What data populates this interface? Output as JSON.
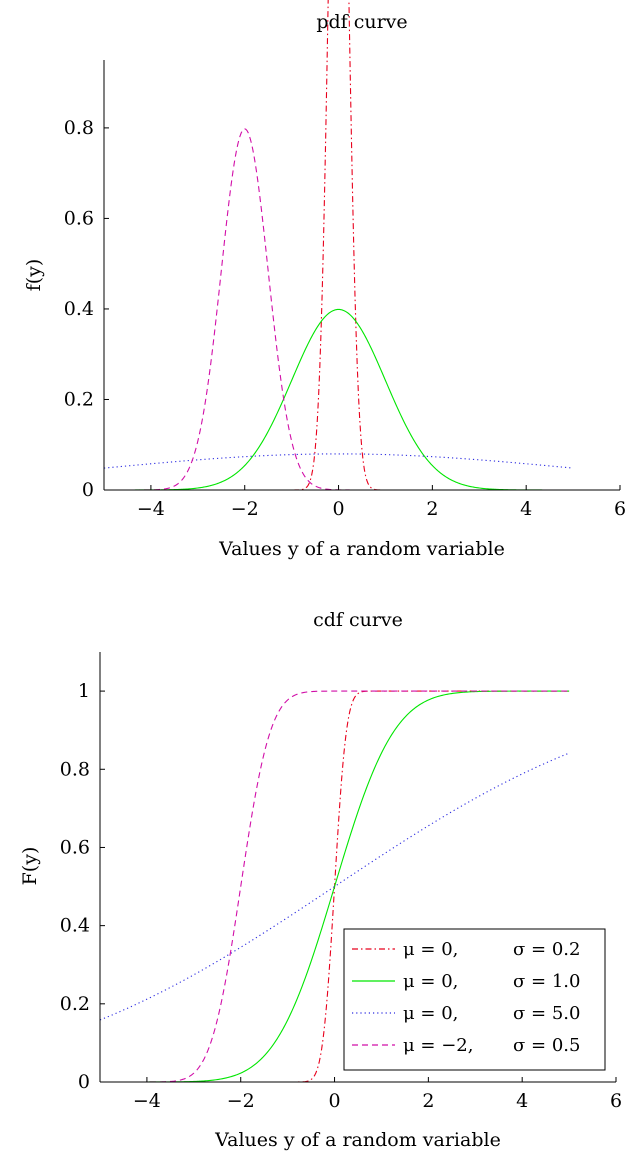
{
  "chart_data": [
    {
      "type": "line",
      "title": "pdf curve",
      "xlabel": "Values y of a random variable",
      "ylabel": "f(y)",
      "xlim": [
        -5,
        6
      ],
      "ylim": [
        0,
        0.95
      ],
      "xticks": [
        -4,
        -2,
        0,
        2,
        4,
        6
      ],
      "xtick_labels": [
        "−4",
        "−2",
        "0",
        "2",
        "4",
        "6"
      ],
      "yticks": [
        0,
        0.2,
        0.4,
        0.6,
        0.8
      ],
      "ytick_labels": [
        "0",
        "0.2",
        "0.4",
        "0.6",
        "0.8"
      ],
      "grid": false,
      "legend": "none",
      "series": [
        {
          "mu": 0,
          "sigma": 0.2,
          "color": "#e8001c",
          "dash": "dashdot"
        },
        {
          "mu": 0,
          "sigma": 1.0,
          "color": "#00e600",
          "dash": "solid"
        },
        {
          "mu": 0,
          "sigma": 5.0,
          "color": "#2a2ae0",
          "dash": "dotted"
        },
        {
          "mu": -2,
          "sigma": 0.5,
          "color": "#d10fa8",
          "dash": "dashed"
        }
      ]
    },
    {
      "type": "line",
      "title": "cdf curve",
      "xlabel": "Values y of a random variable",
      "ylabel": "F(y)",
      "xlim": [
        -5,
        6
      ],
      "ylim": [
        0,
        1.1
      ],
      "xticks": [
        -4,
        -2,
        0,
        2,
        4,
        6
      ],
      "xtick_labels": [
        "−4",
        "−2",
        "0",
        "2",
        "4",
        "6"
      ],
      "yticks": [
        0,
        0.2,
        0.4,
        0.6,
        0.8,
        1
      ],
      "ytick_labels": [
        "0",
        "0.2",
        "0.4",
        "0.6",
        "0.8",
        "1"
      ],
      "grid": false,
      "legend": "bottom-right",
      "legend_entries": [
        {
          "mu_label": "μ = 0,",
          "sigma_label": "σ = 0.2"
        },
        {
          "mu_label": "μ = 0,",
          "sigma_label": "σ = 1.0"
        },
        {
          "mu_label": "μ = 0,",
          "sigma_label": "σ = 5.0"
        },
        {
          "mu_label": "μ = −2,",
          "sigma_label": "σ = 0.5"
        }
      ]
    }
  ]
}
